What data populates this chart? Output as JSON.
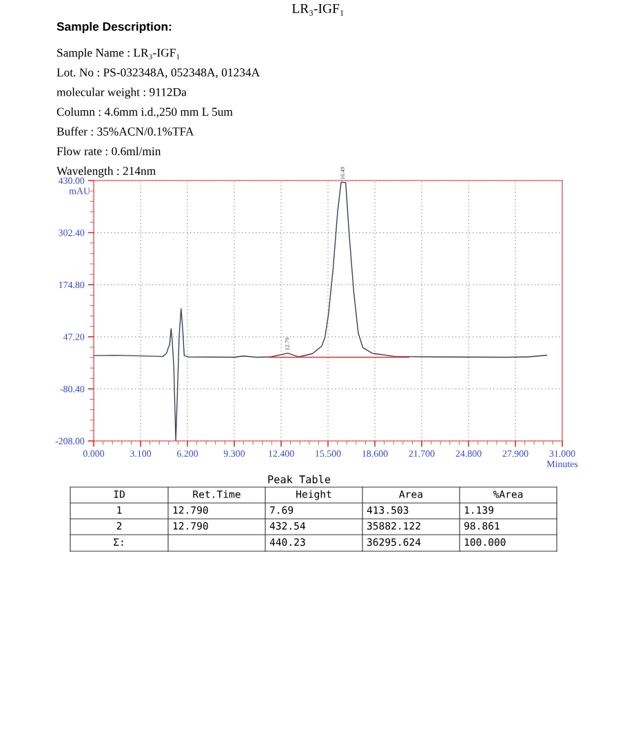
{
  "chart_data": {
    "type": "line",
    "title": "LR₃-IGF₁",
    "xlabel": "Minutes",
    "ylabel": "mAU",
    "x": [
      0,
      1.4,
      4.59,
      4.82,
      4.97,
      5.02,
      5.12,
      5.2,
      5.3,
      5.43,
      5.53,
      5.65,
      5.78,
      5.88,
      5.99,
      6.26,
      9.3,
      9.9,
      10.8,
      11.7,
      12.84,
      13.56,
      14.47,
      15.08,
      15.3,
      15.53,
      15.84,
      16.14,
      16.37,
      16.67,
      16.9,
      17.2,
      17.5,
      17.8,
      18.42,
      18.6,
      19.94,
      22.67,
      27.23,
      28.75,
      29.97
    ],
    "series": [
      {
        "color": "#3a3f5c",
        "values": [
          1,
          2,
          -1,
          7,
          24,
          26,
          67,
          35,
          -27,
          -207,
          -100,
          46,
          116,
          69,
          1,
          -2,
          -3,
          0,
          -3,
          -2,
          7,
          -2,
          6,
          24,
          46,
          102,
          215,
          355,
          426,
          425,
          299,
          159,
          57,
          21,
          7,
          6,
          -1,
          -2,
          -3,
          -2,
          2
        ]
      },
      {
        "color": "#e03030",
        "x": [
          11.47,
          20.85
        ],
        "values": [
          -3,
          -3
        ]
      }
    ],
    "xlim": [
      0,
      31
    ],
    "xticks": [
      {
        "value": 0,
        "label": "0.000"
      },
      {
        "value": 3.1,
        "label": "3.100"
      },
      {
        "value": 6.2,
        "label": "6.200"
      },
      {
        "value": 9.3,
        "label": "9.300"
      },
      {
        "value": 12.4,
        "label": "12.400"
      },
      {
        "value": 15.5,
        "label": "15.500"
      },
      {
        "value": 18.6,
        "label": "18.600"
      },
      {
        "value": 21.7,
        "label": "21.700"
      },
      {
        "value": 24.8,
        "label": "24.800"
      },
      {
        "value": 27.9,
        "label": "27.900"
      },
      {
        "value": 31,
        "label": "31.000"
      }
    ],
    "ylim": [
      -208,
      430
    ],
    "yticks": [
      {
        "value": -208,
        "label": "-208.00"
      },
      {
        "value": -80.4,
        "label": "-80.40"
      },
      {
        "value": 47.2,
        "label": "47.20"
      },
      {
        "value": 174.8,
        "label": "174.80"
      },
      {
        "value": 302.4,
        "label": "302.40"
      },
      {
        "value": 430,
        "label": "430.00"
      }
    ],
    "grid": true,
    "marker": "none",
    "line_style": "solid",
    "annotations": [
      {
        "text": "12.79",
        "x": 12.84,
        "y": 6.7
      },
      {
        "text": "16.49",
        "x": 16.5,
        "y": 425
      },
      "Sample Description:",
      "Sample Name : LR₃-IGF₁",
      "Lot. No : PS-032348A, 052348A, 01234A",
      "molecular weight : 9112Da",
      "Column : 4.6mm i.d.,250 mm L 5um",
      "Buffer : 35%ACN/0.1%TFA",
      "Flow rate : 0.6ml/min",
      "Wavelength : 214nm",
      "Peak Table",
      "ID",
      "Ret.Time",
      "Height",
      "Area",
      "%Area",
      "1",
      "12.790",
      "7.69",
      "413.503",
      "1.139",
      "2",
      "12.790",
      "432.54",
      "35882.122",
      "98.861",
      "Σ:",
      "440.23",
      "36295.624",
      "100.000"
    ]
  }
}
